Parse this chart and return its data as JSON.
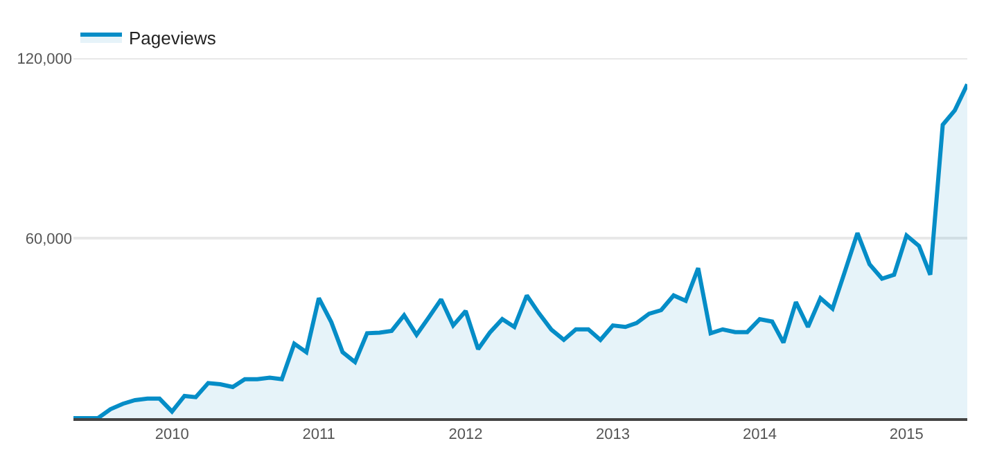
{
  "chart_data": {
    "type": "area",
    "x": [
      "2009-05",
      "2009-06",
      "2009-07",
      "2009-08",
      "2009-09",
      "2009-10",
      "2009-11",
      "2009-12",
      "2010-01",
      "2010-02",
      "2010-03",
      "2010-04",
      "2010-05",
      "2010-06",
      "2010-07",
      "2010-08",
      "2010-09",
      "2010-10",
      "2010-11",
      "2010-12",
      "2011-01",
      "2011-02",
      "2011-03",
      "2011-04",
      "2011-05",
      "2011-06",
      "2011-07",
      "2011-08",
      "2011-09",
      "2011-10",
      "2011-11",
      "2011-12",
      "2012-01",
      "2012-02",
      "2012-03",
      "2012-04",
      "2012-05",
      "2012-06",
      "2012-07",
      "2012-08",
      "2012-09",
      "2012-10",
      "2012-11",
      "2012-12",
      "2013-01",
      "2013-02",
      "2013-03",
      "2013-04",
      "2013-05",
      "2013-06",
      "2013-07",
      "2013-08",
      "2013-09",
      "2013-10",
      "2013-11",
      "2013-12",
      "2014-01",
      "2014-02",
      "2014-03",
      "2014-04",
      "2014-05",
      "2014-06",
      "2014-07",
      "2014-08",
      "2014-09",
      "2014-10",
      "2014-11",
      "2014-12",
      "2015-01",
      "2015-02",
      "2015-03",
      "2015-04",
      "2015-05",
      "2015-06"
    ],
    "series": [
      {
        "name": "Pageviews",
        "color": "#058dc7",
        "values": [
          0,
          0,
          0,
          3000,
          4800,
          6000,
          6500,
          6500,
          2200,
          7400,
          7000,
          11700,
          11300,
          10400,
          13000,
          13000,
          13500,
          13000,
          24800,
          22000,
          40000,
          32000,
          22000,
          18700,
          28300,
          28500,
          29100,
          34300,
          27800,
          33500,
          39600,
          30900,
          35700,
          23000,
          28500,
          33000,
          30400,
          40900,
          35000,
          29500,
          26100,
          29600,
          29600,
          26100,
          30900,
          30400,
          31700,
          34800,
          36000,
          40900,
          39100,
          50000,
          28300,
          29600,
          28700,
          28700,
          33000,
          32200,
          25200,
          38700,
          30400,
          40000,
          36500,
          49000,
          61700,
          51300,
          46500,
          47800,
          60900,
          57400,
          47800,
          97800,
          102600,
          111300
        ]
      }
    ],
    "xlim": [
      "2009-05",
      "2015-06"
    ],
    "xticks": [
      {
        "value": "2010-01",
        "label": "2010"
      },
      {
        "value": "2011-01",
        "label": "2011"
      },
      {
        "value": "2012-01",
        "label": "2012"
      },
      {
        "value": "2013-01",
        "label": "2013"
      },
      {
        "value": "2014-01",
        "label": "2014"
      },
      {
        "value": "2015-01",
        "label": "2015"
      }
    ],
    "ylim": [
      0,
      120000
    ],
    "yticks": [
      {
        "value": 60000,
        "label": "60,000"
      },
      {
        "value": 120000,
        "label": "120,000"
      }
    ],
    "grid": "y",
    "legend": "top left"
  }
}
